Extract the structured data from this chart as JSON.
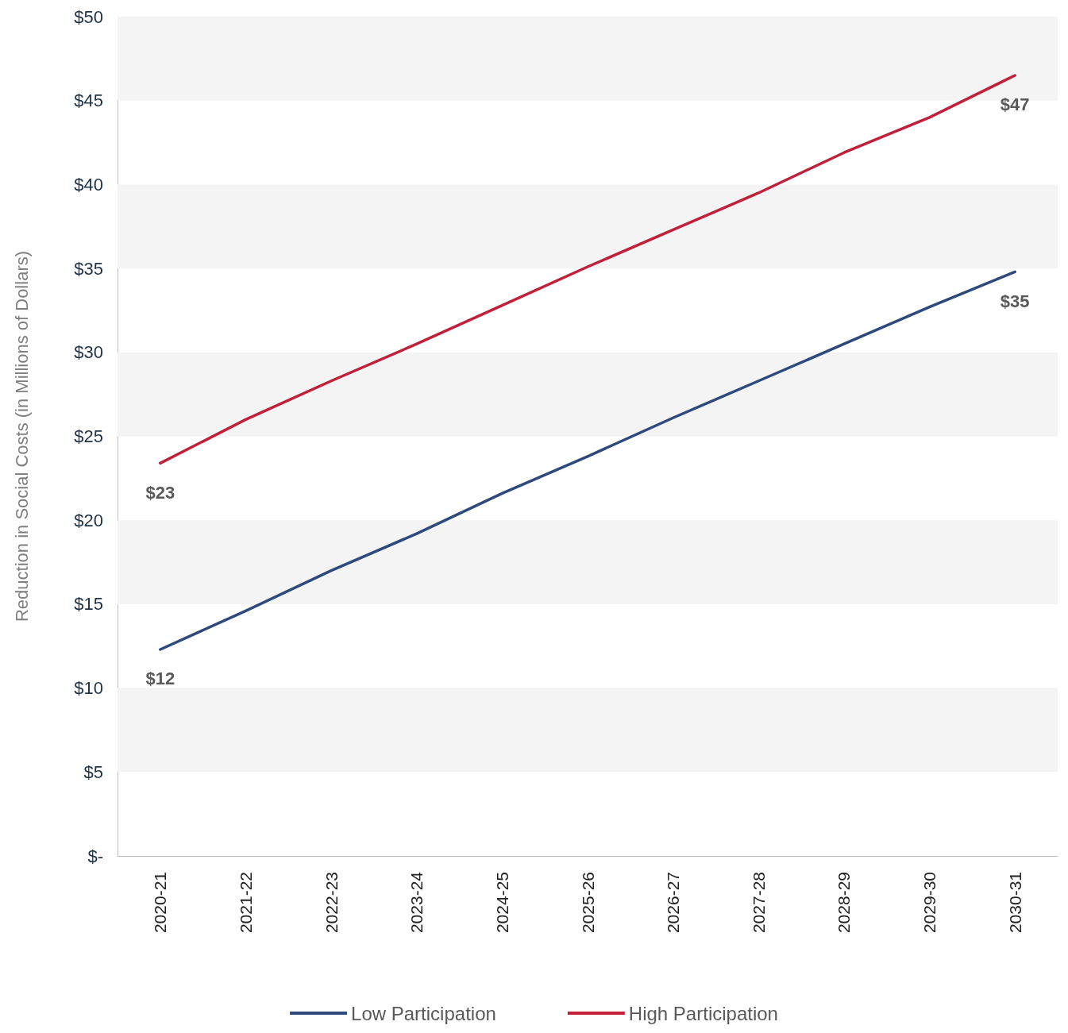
{
  "chart_data": {
    "type": "line",
    "ylabel": "Reduction in Social Costs (in Millions of Dollars)",
    "categories": [
      "2020-21",
      "2021-22",
      "2022-23",
      "2023-24",
      "2024-25",
      "2025-26",
      "2026-27",
      "2027-28",
      "2028-29",
      "2029-30",
      "2030-31"
    ],
    "series": [
      {
        "name": "Low Participation",
        "color": "#2e4a7d",
        "values": [
          12.3,
          14.6,
          17.0,
          19.2,
          21.6,
          23.8,
          26.1,
          28.3,
          30.5,
          32.7,
          34.8
        ],
        "value_labels": [
          "$12",
          null,
          null,
          null,
          null,
          null,
          null,
          null,
          null,
          null,
          "$35"
        ]
      },
      {
        "name": "High Participation",
        "color": "#c0203a",
        "values": [
          23.4,
          26.0,
          28.3,
          30.5,
          32.8,
          35.1,
          37.3,
          39.5,
          41.9,
          44.0,
          46.5
        ],
        "value_labels": [
          "$23",
          null,
          null,
          null,
          null,
          null,
          null,
          null,
          null,
          null,
          "$47"
        ]
      }
    ],
    "ylim": [
      0,
      50
    ],
    "yticks": [
      {
        "value": 0,
        "label": "$-"
      },
      {
        "value": 5,
        "label": "$5"
      },
      {
        "value": 10,
        "label": "$10"
      },
      {
        "value": 15,
        "label": "$15"
      },
      {
        "value": 20,
        "label": "$20"
      },
      {
        "value": 25,
        "label": "$25"
      },
      {
        "value": 30,
        "label": "$30"
      },
      {
        "value": 35,
        "label": "$35"
      },
      {
        "value": 40,
        "label": "$40"
      },
      {
        "value": 45,
        "label": "$45"
      },
      {
        "value": 50,
        "label": "$50"
      }
    ],
    "bands": [
      {
        "axis": "y",
        "from": 5,
        "to": 10,
        "color": "#f4f4f4"
      },
      {
        "axis": "y",
        "from": 15,
        "to": 20,
        "color": "#f4f4f4"
      },
      {
        "axis": "y",
        "from": 25,
        "to": 30,
        "color": "#f4f4f4"
      },
      {
        "axis": "y",
        "from": 35,
        "to": 40,
        "color": "#f4f4f4"
      },
      {
        "axis": "y",
        "from": 45,
        "to": 50,
        "color": "#f4f4f4"
      }
    ],
    "legend": "bottom",
    "marker": "none",
    "line_style": "solid"
  }
}
